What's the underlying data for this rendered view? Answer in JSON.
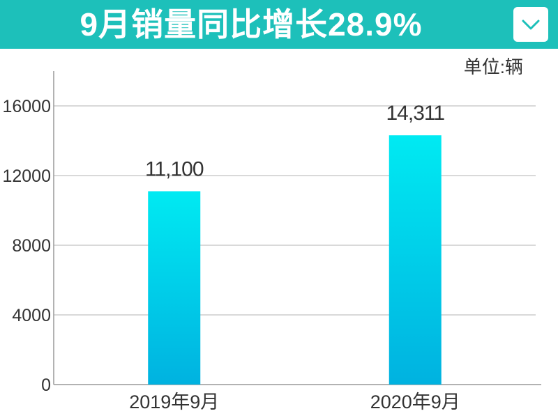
{
  "header": {
    "title": "9月销量同比增长28.9%",
    "dropdown_icon": "chevron-down-icon",
    "background_color": "#1dc0ba"
  },
  "chart_data": {
    "type": "bar",
    "title": "9月销量同比增长28.9%",
    "unit_label": "单位:辆",
    "categories": [
      "2019年9月",
      "2020年9月"
    ],
    "values": [
      11100,
      14311
    ],
    "value_labels": [
      "11,100",
      "14,311"
    ],
    "ylim": [
      0,
      18000
    ],
    "yticks": [
      0,
      4000,
      8000,
      12000,
      16000
    ],
    "ytick_labels": [
      "0",
      "4000",
      "8000",
      "12000",
      "16000"
    ],
    "grid": true,
    "bar_color_top": "#00eaf2",
    "bar_color_bottom": "#00b2e0"
  }
}
